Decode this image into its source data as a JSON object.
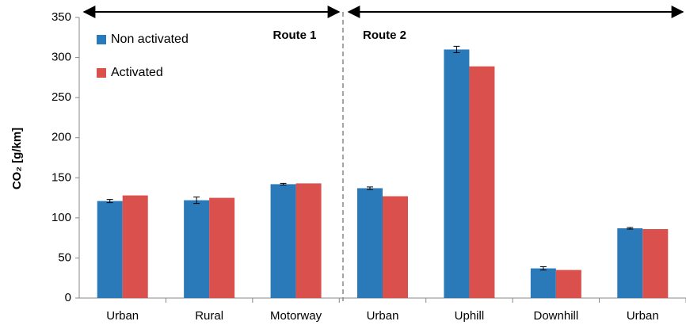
{
  "chart_data": {
    "type": "bar",
    "y_label": "CO₂ [g/km]",
    "annotations": [
      "Route 1",
      "Route 2"
    ],
    "categories": [
      "Urban",
      "Rural",
      "Motorway",
      "Urban",
      "Uphill",
      "Downhill",
      "Urban"
    ],
    "series": [
      {
        "name": "Non activated",
        "color": "#2a7ab9",
        "values": [
          121,
          122,
          142,
          137,
          310,
          37,
          87
        ],
        "errors": [
          2,
          4,
          1,
          1.5,
          4,
          2,
          1
        ]
      },
      {
        "name": "Activated",
        "color": "#d9504d",
        "values": [
          128,
          125,
          143,
          127,
          289,
          35,
          86
        ]
      }
    ],
    "ylim": [
      0,
      350
    ],
    "yticks": [
      0,
      50,
      100,
      150,
      200,
      250,
      300,
      350
    ],
    "grid": false,
    "legend": "upper left"
  }
}
